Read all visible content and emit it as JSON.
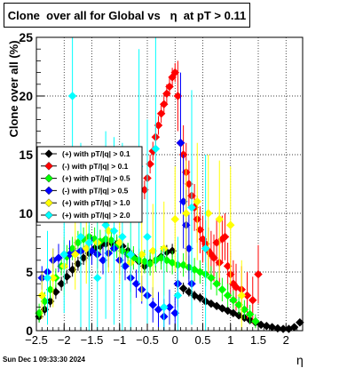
{
  "chart_data": {
    "type": "scatter",
    "title": "Clone  over all for Global vs   η  at pT > 0.11",
    "xlabel": "η",
    "ylabel": "Clone  over all (%)",
    "xlim": [
      -2.5,
      2.3
    ],
    "ylim": [
      0,
      25
    ],
    "xticks": [
      -2.5,
      -2,
      -1.5,
      -1,
      -0.5,
      0,
      0.5,
      1,
      1.5,
      2
    ],
    "xtick_labels": [
      "−2.5",
      "−2",
      "−1.5",
      "−1",
      "−0.5",
      "0",
      "0.5",
      "1",
      "1.5",
      "2"
    ],
    "yticks": [
      0,
      5,
      10,
      15,
      20,
      25
    ],
    "ytick_labels": [
      "0",
      "5",
      "10",
      "15",
      "20",
      "25"
    ],
    "grid": true,
    "legend_position": "left-middle",
    "timestamp": "Sun Dec  1 09:33:30 2024",
    "series": [
      {
        "name": "(+) with pT/|q| > 0.1",
        "color": "#000000",
        "x": [
          -2.45,
          -2.35,
          -2.25,
          -2.15,
          -2.05,
          -1.95,
          -1.85,
          -1.75,
          -1.65,
          -1.55,
          -1.45,
          -1.35,
          -1.25,
          -1.15,
          -1.05,
          -0.95,
          -0.85,
          -0.75,
          -0.65,
          -0.55,
          -0.45,
          -0.35,
          -0.25,
          -0.15,
          -0.05,
          0.05,
          0.15,
          0.25,
          0.35,
          0.45,
          0.55,
          0.65,
          0.75,
          0.85,
          0.95,
          1.05,
          1.15,
          1.25,
          1.35,
          1.45,
          1.55,
          1.65,
          1.75,
          1.85,
          1.95,
          2.05,
          2.15,
          2.25
        ],
        "y": [
          1.2,
          1.8,
          2.5,
          3.3,
          4.0,
          4.6,
          5.2,
          5.7,
          6.2,
          6.6,
          7.0,
          7.2,
          7.4,
          7.5,
          7.4,
          7.2,
          6.8,
          6.3,
          5.9,
          5.5,
          5.8,
          6.0,
          6.3,
          6.7,
          6.8,
          4.0,
          3.6,
          3.3,
          3.0,
          2.8,
          2.5,
          2.3,
          2.1,
          1.9,
          1.7,
          1.5,
          1.3,
          1.1,
          0.9,
          0.7,
          0.5,
          0.4,
          0.3,
          0.2,
          0.15,
          0.15,
          0.3,
          0.7
        ],
        "err": [
          0.5,
          0.5,
          0.5,
          0.6,
          0.6,
          0.6,
          0.6,
          0.6,
          0.6,
          0.6,
          0.6,
          0.6,
          0.6,
          0.6,
          0.6,
          0.6,
          0.6,
          0.6,
          0.6,
          0.6,
          0.6,
          0.6,
          0.6,
          0.6,
          0.6,
          0.5,
          0.5,
          0.4,
          0.4,
          0.4,
          0.3,
          0.3,
          0.3,
          0.3,
          0.3,
          0.3,
          0.2,
          0.2,
          0.2,
          0.2,
          0.2,
          0.2,
          0.1,
          0.1,
          0.1,
          0.1,
          0.1,
          0.3
        ]
      },
      {
        "name": "(-) with pT/|q| > 0.1",
        "color": "#ff0000",
        "x": [
          -0.55,
          -0.5,
          -0.45,
          -0.4,
          -0.35,
          -0.3,
          -0.25,
          -0.2,
          -0.15,
          -0.1,
          -0.05,
          0.0,
          0.05,
          0.1,
          0.15,
          0.2,
          0.25,
          0.3,
          0.35,
          0.4,
          0.45,
          0.5,
          0.55,
          0.6,
          0.65,
          0.7,
          0.75,
          0.8,
          0.85,
          0.9,
          0.95,
          1.0,
          1.05,
          1.1,
          1.2,
          1.3,
          1.4,
          1.5
        ],
        "y": [
          12.0,
          13.0,
          14.2,
          15.3,
          16.5,
          17.5,
          18.5,
          19.3,
          20.2,
          20.8,
          21.6,
          22.0,
          20.0,
          16.0,
          15.0,
          13.5,
          12.5,
          11.5,
          10.5,
          9.5,
          8.6,
          7.8,
          7.4,
          6.8,
          6.5,
          6.2,
          7.5,
          5.8,
          7.8,
          8.0,
          5.5,
          4.8,
          4.0,
          3.7,
          3.5,
          3.0,
          2.6,
          4.8
        ],
        "err": [
          0.8,
          0.8,
          0.8,
          0.8,
          0.8,
          0.8,
          0.8,
          0.8,
          0.8,
          0.8,
          0.8,
          0.8,
          3.0,
          3.0,
          2.5,
          2.5,
          2.0,
          2.0,
          2.0,
          2.0,
          2.0,
          2.0,
          2.0,
          2.0,
          2.0,
          2.0,
          2.0,
          2.0,
          2.0,
          2.0,
          2.0,
          2.0,
          2.0,
          2.0,
          2.0,
          2.0,
          2.0,
          2.5
        ]
      },
      {
        "name": "(+) with pT/|q| > 0.5",
        "color": "#00ff00",
        "x": [
          -2.45,
          -2.35,
          -2.25,
          -2.15,
          -2.05,
          -1.95,
          -1.85,
          -1.75,
          -1.65,
          -1.55,
          -1.45,
          -1.35,
          -1.25,
          -1.15,
          -1.05,
          -0.95,
          -0.85,
          -0.75,
          -0.65,
          -0.55,
          -0.45,
          -0.35,
          -0.25,
          -0.15,
          -0.05,
          0.05,
          0.15,
          0.25,
          0.35,
          0.45,
          0.55,
          0.65,
          0.75,
          0.85,
          0.95,
          1.05,
          1.15,
          1.25,
          1.35,
          1.45
        ],
        "y": [
          1.5,
          2.5,
          3.5,
          4.5,
          5.5,
          6.3,
          7.0,
          7.5,
          7.8,
          8.0,
          7.8,
          7.6,
          7.8,
          7.7,
          7.2,
          6.8,
          6.5,
          6.2,
          6.0,
          5.9,
          5.7,
          6.0,
          6.2,
          6.0,
          5.8,
          5.6,
          5.6,
          5.4,
          5.2,
          5.0,
          4.8,
          4.5,
          4.0,
          3.5,
          3.0,
          2.6,
          2.2,
          1.8,
          1.4,
          0.8
        ],
        "err": [
          0.8,
          0.8,
          0.8,
          0.8,
          0.8,
          1.0,
          1.0,
          1.0,
          1.0,
          1.0,
          1.0,
          1.0,
          1.0,
          1.0,
          1.0,
          1.0,
          1.0,
          1.0,
          1.0,
          1.0,
          1.0,
          1.0,
          1.0,
          1.0,
          1.0,
          1.0,
          1.0,
          1.0,
          1.0,
          1.0,
          1.0,
          1.0,
          1.0,
          1.0,
          1.0,
          0.8,
          0.8,
          0.8,
          0.8,
          0.6
        ]
      },
      {
        "name": "(-) with pT/|q| > 0.5",
        "color": "#0000ff",
        "x": [
          -2.4,
          -2.3,
          -2.2,
          -2.1,
          -2.0,
          -1.9,
          -1.8,
          -1.7,
          -1.6,
          -1.5,
          -1.4,
          -1.3,
          -1.2,
          -1.1,
          -1.0,
          -0.9,
          -0.8,
          -0.7,
          -0.6,
          -0.5,
          -0.4,
          -0.3,
          -0.2,
          -0.1,
          0.0,
          0.05,
          0.1,
          0.15,
          0.2,
          0.25,
          0.3
        ],
        "y": [
          4.5,
          5.0,
          6.0,
          6.2,
          6.5,
          6.5,
          6.6,
          6.8,
          7.0,
          6.8,
          6.5,
          6.0,
          6.6,
          7.0,
          6.0,
          5.5,
          4.5,
          4.0,
          3.5,
          3.0,
          2.2,
          1.8,
          1.2,
          2.0,
          1.5,
          4.0,
          16.0,
          11.0,
          9.0,
          7.0,
          4.0
        ],
        "err": [
          1.0,
          1.0,
          1.0,
          1.2,
          1.2,
          1.2,
          1.2,
          1.2,
          1.2,
          1.2,
          1.2,
          1.2,
          1.2,
          1.2,
          1.2,
          1.2,
          1.2,
          1.2,
          1.2,
          1.5,
          1.5,
          1.5,
          1.5,
          1.5,
          1.5,
          2.0,
          6.0,
          4.0,
          3.0,
          3.0,
          2.0
        ]
      },
      {
        "name": "(+) with pT/|q| > 1.0",
        "color": "#ffff00",
        "x": [
          -2.4,
          -2.2,
          -2.0,
          -1.8,
          -1.6,
          -1.4,
          -1.2,
          -1.0,
          -0.8,
          -0.6,
          -0.4,
          -0.2,
          0.0,
          0.2,
          0.4,
          0.6,
          0.8,
          1.0,
          1.2
        ],
        "y": [
          3.0,
          4.5,
          5.5,
          6.5,
          7.0,
          7.5,
          8.5,
          7.5,
          5.8,
          6.5,
          6.8,
          7.0,
          9.5,
          10.0,
          11.0,
          10.0,
          9.5,
          9.0,
          3.0
        ],
        "err": [
          2.0,
          2.5,
          2.5,
          3.0,
          3.0,
          3.0,
          3.5,
          3.5,
          3.5,
          4.0,
          4.0,
          4.0,
          4.5,
          4.5,
          5.0,
          5.0,
          5.0,
          5.0,
          3.0
        ]
      },
      {
        "name": "(+) with pT/|q| > 2.0",
        "color": "#00ffff",
        "x": [
          -2.3,
          -2.0,
          -1.85,
          -1.7,
          -1.55,
          -1.4,
          -1.25,
          -1.1,
          -0.95,
          -0.8,
          -0.65,
          -0.5,
          -0.35,
          -0.2,
          0.05,
          0.3,
          0.55
        ],
        "y": [
          4.5,
          6.5,
          20.0,
          8.0,
          7.5,
          4.5,
          9.0,
          8.5,
          8.0,
          6.5,
          14.0,
          8.0,
          15.5,
          2.0,
          3.0,
          10.5,
          7.0
        ],
        "err": [
          4.0,
          5.0,
          6.0,
          8.0,
          8.0,
          8.0,
          8.0,
          8.0,
          8.0,
          8.0,
          10.0,
          10.0,
          10.0,
          5.0,
          5.0,
          10.0,
          8.0
        ]
      }
    ]
  }
}
